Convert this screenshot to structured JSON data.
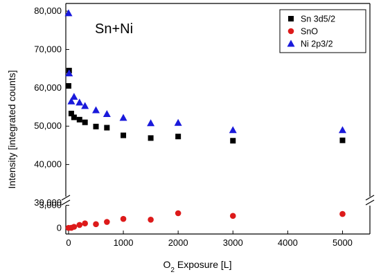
{
  "chart_data": {
    "type": "scatter",
    "title": "",
    "annotation": "Sn+Ni",
    "xlabel_main": "O",
    "xlabel_sub": "2",
    "xlabel_rest": " Exposure [L]",
    "ylabel": "Intensity [integrated counts]",
    "xlim": [
      -50,
      5500
    ],
    "x_ticks": [
      0,
      1000,
      2000,
      3000,
      4000,
      5000
    ],
    "x_tick_labels": [
      "0",
      "1000",
      "2000",
      "3000",
      "4000",
      "5000"
    ],
    "y_axis_broken": true,
    "upper_ylim": [
      30000,
      82000
    ],
    "upper_y_ticks": [
      30000,
      40000,
      50000,
      60000,
      70000,
      80000
    ],
    "upper_y_tick_labels": [
      "30,000",
      "40,000",
      "50,000",
      "60,000",
      "70,000",
      "80,000"
    ],
    "lower_ylim": [
      -800,
      3600
    ],
    "lower_y_ticks": [
      0,
      3000
    ],
    "lower_y_tick_labels": [
      "0",
      "3,000"
    ],
    "grid": false,
    "legend_position": "top-right",
    "series": [
      {
        "name": "Sn 3d5/2",
        "marker": "square",
        "color": "#000000",
        "panel": "upper",
        "x": [
          0,
          10,
          50,
          100,
          200,
          300,
          500,
          700,
          1000,
          1500,
          2000,
          3000,
          5000
        ],
        "y": [
          60500,
          64500,
          53300,
          52300,
          51700,
          51000,
          49900,
          49600,
          47600,
          46900,
          47300,
          46200,
          46300
        ]
      },
      {
        "name": "SnO",
        "marker": "circle",
        "color": "#dd1a1a",
        "panel": "lower",
        "x": [
          0,
          50,
          100,
          200,
          300,
          500,
          700,
          1000,
          1500,
          2000,
          3000,
          5000
        ],
        "y": [
          10,
          20,
          150,
          400,
          600,
          500,
          800,
          1200,
          1100,
          1950,
          1600,
          1850
        ]
      },
      {
        "name": "Ni 2p3/2",
        "marker": "triangle",
        "color": "#1a1adb",
        "panel": "upper",
        "x": [
          0,
          10,
          50,
          100,
          200,
          300,
          500,
          700,
          1000,
          1500,
          2000,
          3000,
          5000
        ],
        "y": [
          79500,
          63800,
          56500,
          57700,
          56200,
          55300,
          54200,
          53200,
          52200,
          50800,
          50900,
          49000,
          49000
        ]
      }
    ]
  }
}
